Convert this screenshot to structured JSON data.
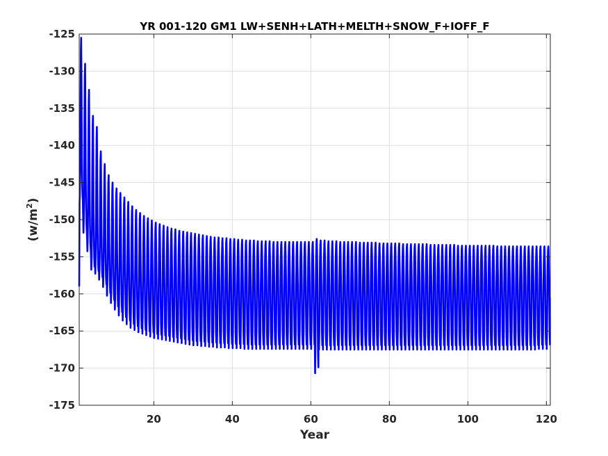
{
  "chart_data": {
    "type": "line",
    "title": "YR 001-120 GM1 LW+SENH+LATH+MELTH+SNOW_F+IOFF_F",
    "xlabel": "Year",
    "ylabel_main": "(w/m",
    "ylabel_sup": "2",
    "ylabel_close": ")",
    "xlim": [
      1,
      121
    ],
    "ylim": [
      -175,
      -125
    ],
    "xticks": [
      20,
      40,
      60,
      80,
      100,
      120
    ],
    "yticks": [
      -175,
      -170,
      -165,
      -160,
      -155,
      -150,
      -145,
      -140,
      -135,
      -130,
      -125
    ],
    "grid": true,
    "series": [
      {
        "color": "#0000ff",
        "monthly": true,
        "annual_max": [
          -125.5,
          -129,
          -132.5,
          -136,
          -137.5,
          -140.8,
          -142.5,
          -144,
          -145,
          -145.8,
          -146.4,
          -147,
          -147.6,
          -148.2,
          -148.7,
          -149.1,
          -149.5,
          -149.8,
          -150.1,
          -150.4,
          -150.6,
          -150.8,
          -151,
          -151.2,
          -151.3,
          -151.5,
          -151.6,
          -151.7,
          -151.8,
          -151.9,
          -152,
          -152.1,
          -152.2,
          -152.3,
          -152.4,
          -152.4,
          -152.5,
          -152.5,
          -152.6,
          -152.6,
          -152.7,
          -152.7,
          -152.8,
          -152.8,
          -152.8,
          -152.9,
          -152.9,
          -152.9,
          -152.9,
          -153,
          -153,
          -153,
          -153,
          -153,
          -153,
          -153,
          -153,
          -153,
          -153,
          -153,
          -152.6,
          -152.8,
          -152.8,
          -152.9,
          -152.9,
          -152.9,
          -153,
          -153,
          -153,
          -153,
          -153,
          -153.1,
          -153.1,
          -153.1,
          -153.1,
          -153.1,
          -153.2,
          -153.2,
          -153.2,
          -153.2,
          -153.2,
          -153.2,
          -153.3,
          -153.3,
          -153.3,
          -153.3,
          -153.3,
          -153.3,
          -153.3,
          -153.4,
          -153.4,
          -153.4,
          -153.4,
          -153.4,
          -153.4,
          -153.4,
          -153.5,
          -153.5,
          -153.5,
          -153.5,
          -153.5,
          -153.5,
          -153.5,
          -153.5,
          -153.5,
          -153.5,
          -153.6,
          -153.6,
          -153.6,
          -153.6,
          -153.6,
          -153.6,
          -153.6,
          -153.6,
          -153.6,
          -153.6,
          -153.6,
          -153.6,
          -153.6,
          -153.6
        ],
        "annual_min": [
          -148,
          -152,
          -154.5,
          -157,
          -157.5,
          -158.3,
          -159.3,
          -160.5,
          -161.5,
          -162.4,
          -163.2,
          -163.9,
          -164.4,
          -164.9,
          -165.2,
          -165.5,
          -165.7,
          -165.9,
          -166.1,
          -166.3,
          -166.4,
          -166.5,
          -166.6,
          -166.7,
          -166.8,
          -166.9,
          -167,
          -167.1,
          -167.2,
          -167.3,
          -167.3,
          -167.4,
          -167.4,
          -167.5,
          -167.5,
          -167.6,
          -167.6,
          -167.6,
          -167.7,
          -167.7,
          -167.7,
          -167.7,
          -167.8,
          -167.8,
          -167.8,
          -167.8,
          -167.8,
          -167.8,
          -167.8,
          -167.8,
          -167.8,
          -167.8,
          -167.8,
          -167.8,
          -167.8,
          -167.8,
          -167.8,
          -167.8,
          -167.8,
          -167.8,
          -171.2,
          -167.9,
          -167.9,
          -167.9,
          -167.9,
          -167.9,
          -167.9,
          -167.9,
          -167.9,
          -167.9,
          -167.9,
          -167.9,
          -167.9,
          -167.9,
          -167.9,
          -167.9,
          -167.9,
          -167.9,
          -167.9,
          -167.9,
          -167.9,
          -167.9,
          -167.9,
          -167.9,
          -167.9,
          -167.9,
          -167.9,
          -167.9,
          -167.9,
          -167.9,
          -167.9,
          -167.9,
          -167.9,
          -167.9,
          -167.9,
          -167.9,
          -167.9,
          -167.9,
          -167.9,
          -167.9,
          -167.9,
          -167.9,
          -167.9,
          -167.9,
          -167.9,
          -167.9,
          -167.9,
          -167.9,
          -167.9,
          -167.9,
          -167.9,
          -167.9,
          -167.9,
          -167.9,
          -167.9,
          -167.9,
          -167.9,
          -167.8,
          -167.8,
          -167.8
        ],
        "annual_mean": [
          -143,
          -146,
          -148.5,
          -150.5,
          -151.8,
          -152.8,
          -153.6,
          -154.3,
          -154.9,
          -155.4,
          -155.8,
          -156.1,
          -156.4,
          -156.6,
          -156.8,
          -157,
          -157.1,
          -157.2,
          -157.3,
          -157.4,
          -157.5,
          -157.5,
          -157.6,
          -157.6,
          -157.7,
          -157.7,
          -157.8,
          -157.8,
          -157.8,
          -157.9,
          -157.9,
          -157.9,
          -157.9,
          -158,
          -158,
          -158,
          -158,
          -158,
          -158,
          -158,
          -158.1,
          -158.1,
          -158.1,
          -158.1,
          -158.1,
          -158.1,
          -158.1,
          -158.1,
          -158.1,
          -158.1,
          -158.1,
          -158.1,
          -158.1,
          -158.1,
          -158.1,
          -158.1,
          -158.1,
          -158.1,
          -158.1,
          -158.1,
          -158.1,
          -158.1,
          -158.1,
          -158.1,
          -158.1,
          -158.1,
          -158.1,
          -158.1,
          -158.1,
          -158.1,
          -158.1,
          -158.1,
          -158.1,
          -158.1,
          -158.1,
          -158.1,
          -158.1,
          -158.1,
          -158.1,
          -158.1,
          -158.1,
          -158.1,
          -158.1,
          -158.1,
          -158.1,
          -158.1,
          -158.1,
          -158.1,
          -158.1,
          -158.1,
          -158.1,
          -158.1,
          -158.1,
          -158.1,
          -158.1,
          -158.1,
          -158.1,
          -158.1,
          -158.1,
          -158.1,
          -158.1,
          -158.1,
          -158.1,
          -158.1,
          -158.1,
          -158.1,
          -158.1,
          -158.1,
          -158.1,
          -158.1,
          -158.1,
          -158.1,
          -158.1,
          -158.1,
          -158.1,
          -158.1,
          -158.1,
          -158.1,
          -158.1,
          -158.1
        ],
        "first_value": -159,
        "last_value": -160.5
      }
    ]
  }
}
